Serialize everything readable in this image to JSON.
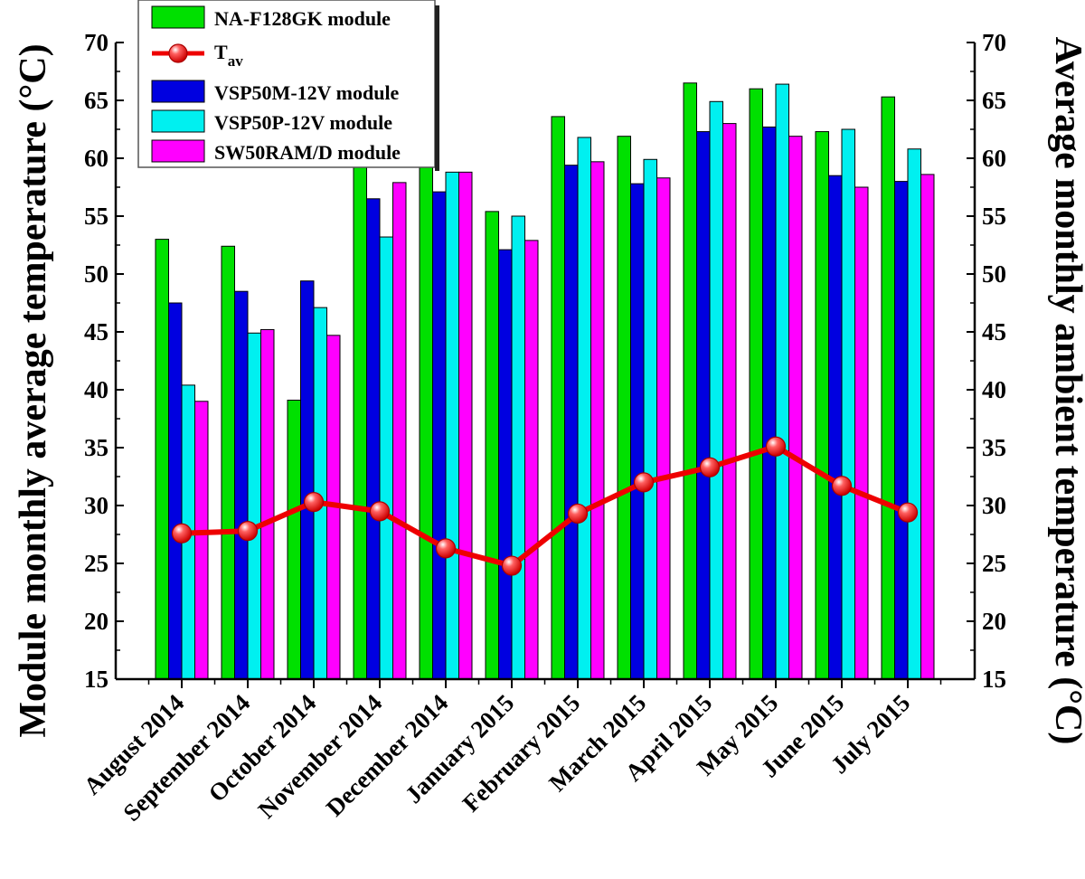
{
  "chart_data": {
    "type": "bar",
    "categories": [
      "August 2014",
      "September 2014",
      "October 2014",
      "November 2014",
      "December 2014",
      "January 2015",
      "February 2015",
      "March 2015",
      "April 2015",
      "May 2015",
      "June 2015",
      "July 2015"
    ],
    "series": [
      {
        "name": "NA-F128GK module",
        "color": "#00e000",
        "values": [
          53.0,
          52.4,
          39.1,
          59.5,
          59.5,
          55.4,
          63.6,
          61.9,
          66.5,
          66.0,
          62.3,
          65.3
        ]
      },
      {
        "name": "VSP50M-12V module",
        "color": "#0000e0",
        "values": [
          47.5,
          48.5,
          49.4,
          56.5,
          57.1,
          52.1,
          59.4,
          57.8,
          62.3,
          62.7,
          58.5,
          58.0
        ]
      },
      {
        "name": "VSP50P-12V module",
        "color": "#00f0f0",
        "values": [
          40.4,
          44.9,
          47.1,
          53.2,
          58.8,
          55.0,
          61.8,
          59.9,
          64.9,
          66.4,
          62.5,
          60.8
        ]
      },
      {
        "name": "SW50RAM/D module",
        "color": "#ff00ff",
        "values": [
          39.0,
          45.2,
          44.7,
          57.9,
          58.8,
          52.9,
          59.7,
          58.3,
          63.0,
          61.9,
          57.5,
          58.6
        ]
      }
    ],
    "line_series": {
      "name": "T",
      "subscript": "av",
      "color": "#ee0000",
      "values": [
        27.6,
        27.8,
        30.3,
        29.5,
        26.3,
        24.8,
        29.3,
        32.0,
        33.3,
        35.1,
        31.7,
        29.4
      ]
    },
    "ylabel": "Module monthly average temperature (°C)",
    "ylabel_right": "Average monthly ambient temperature (°C)",
    "ylim": [
      15,
      70
    ],
    "yticks": [
      15,
      20,
      25,
      30,
      35,
      40,
      45,
      50,
      55,
      60,
      65,
      70
    ],
    "legend_position": "top-left"
  }
}
